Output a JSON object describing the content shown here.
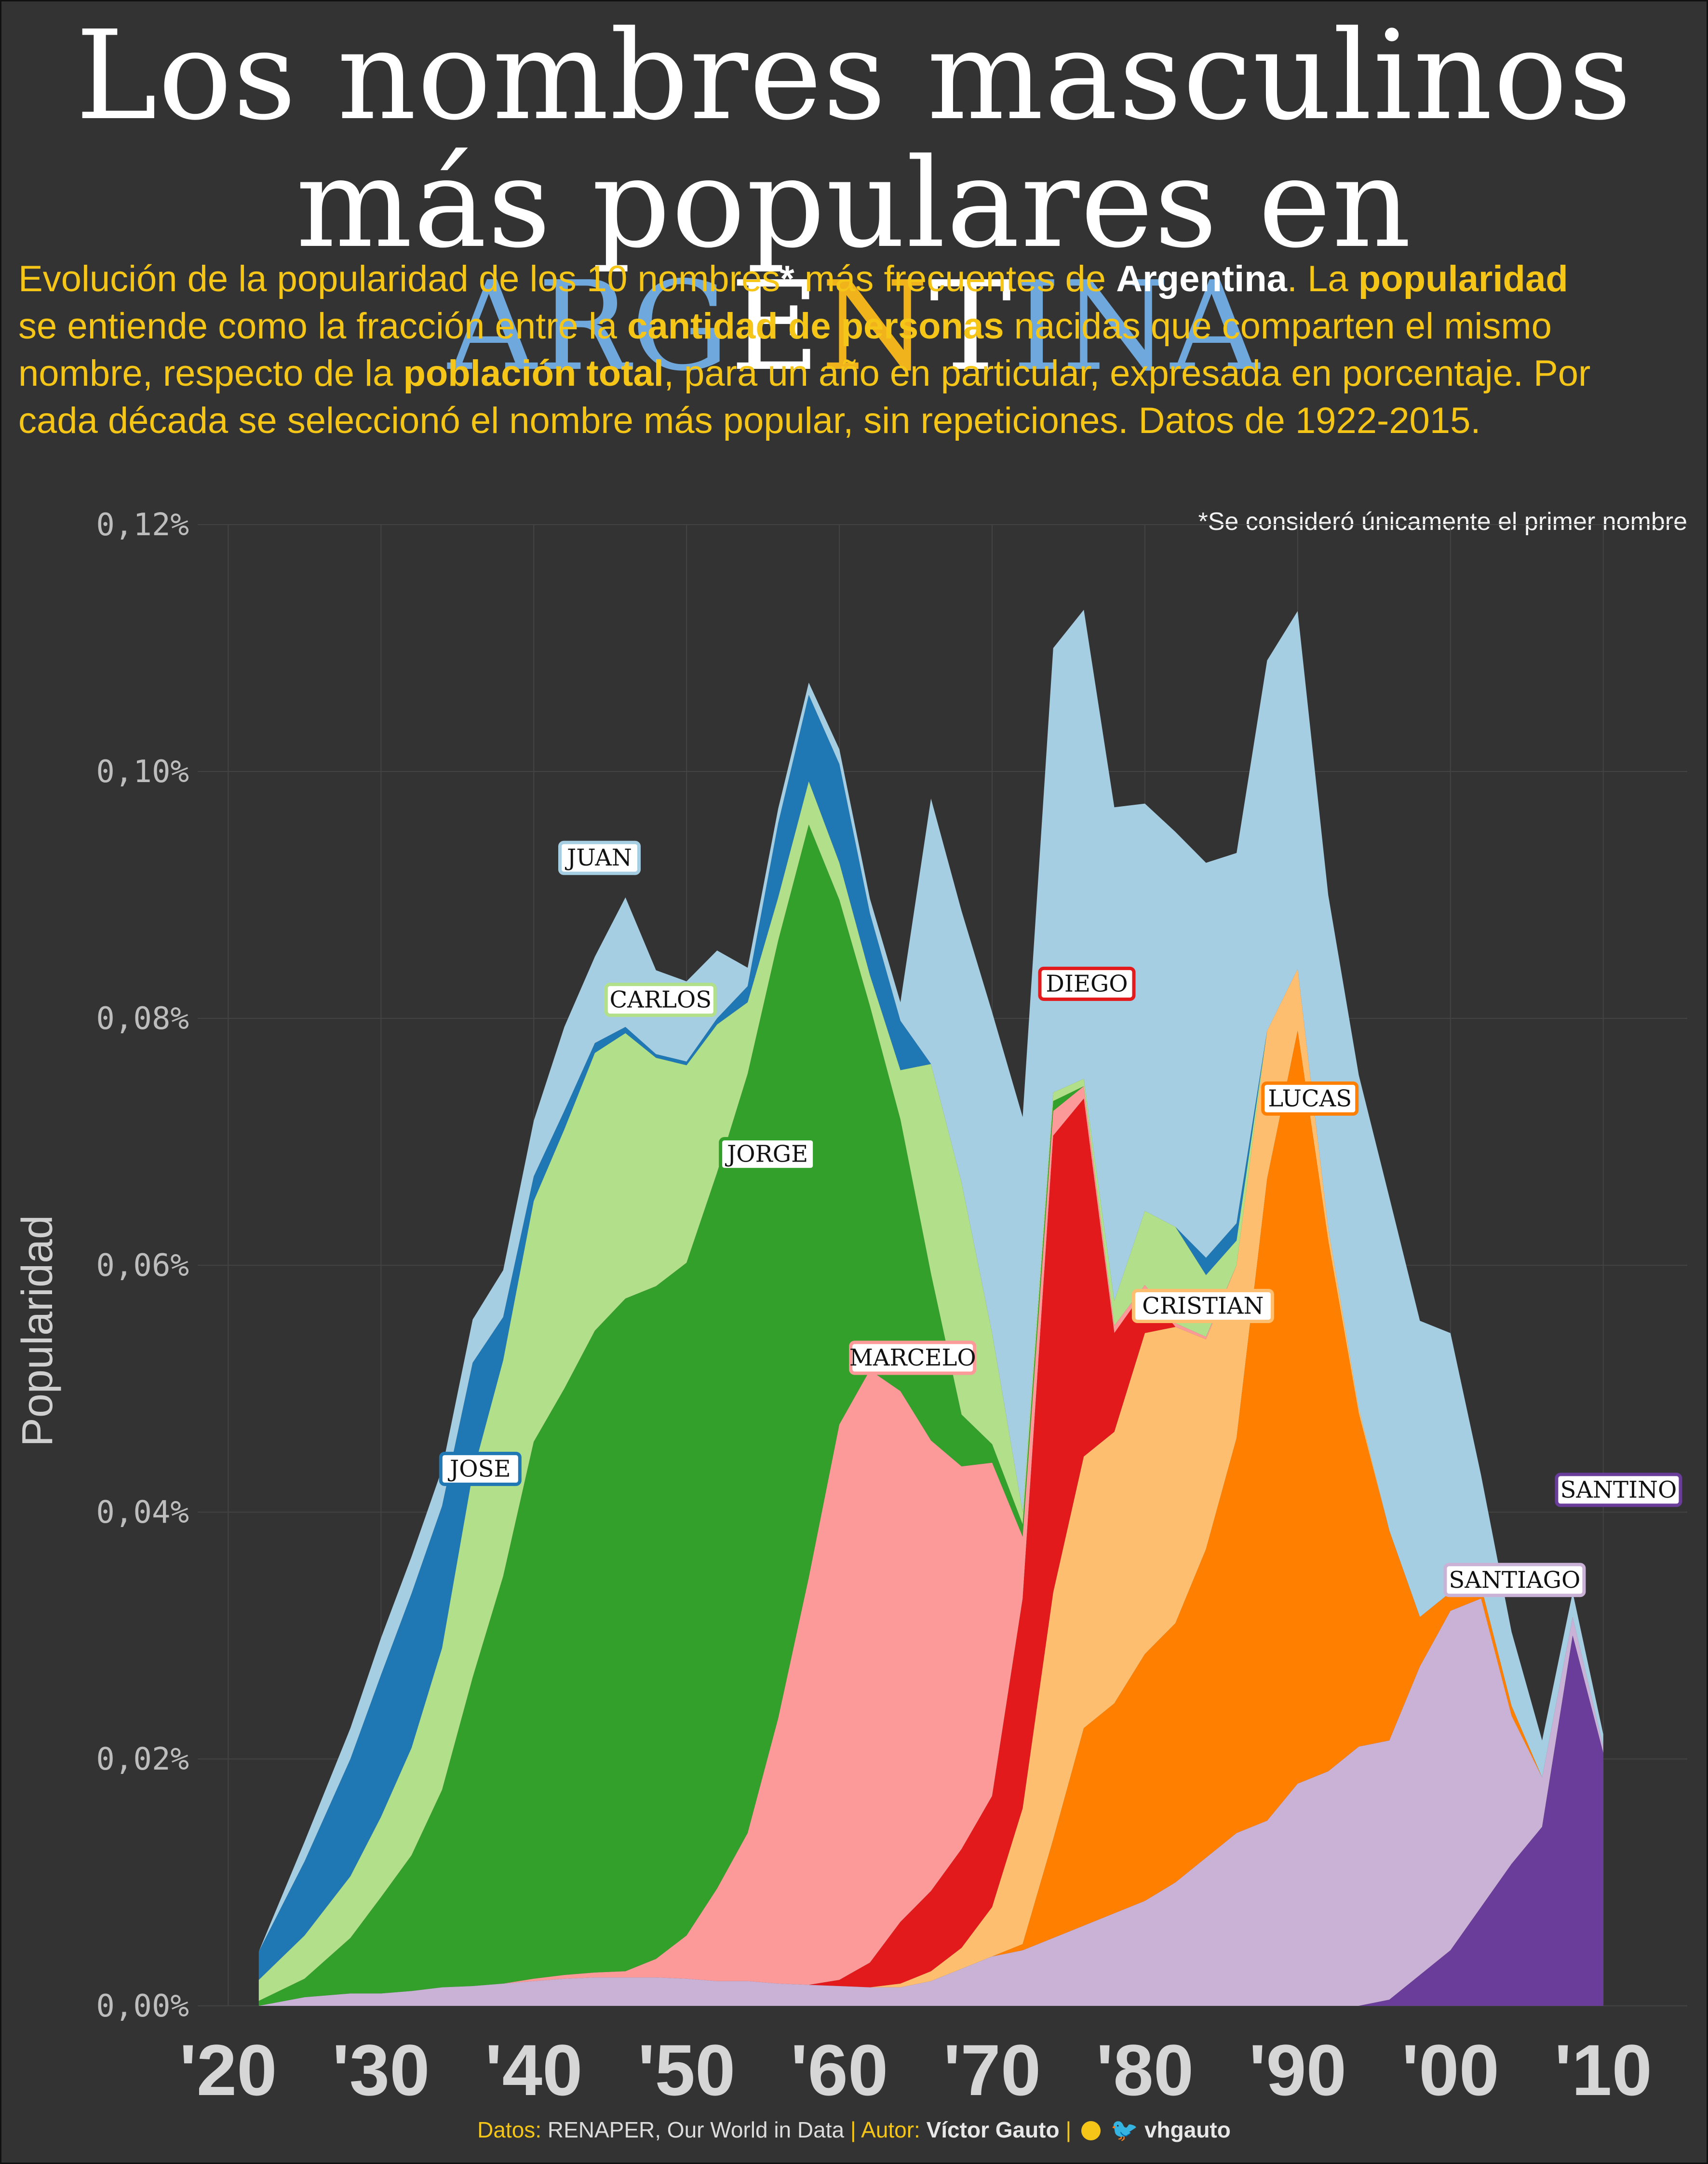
{
  "title": {
    "line1": "Los nombres masculinos",
    "line2_prefix": "más populares en",
    "country_letters": [
      {
        "t": "ARG",
        "color": "#6fa8dc"
      },
      {
        "t": "E",
        "color": "#ffffff"
      },
      {
        "t": "N",
        "color": "#f1b31c"
      },
      {
        "t": "T",
        "color": "#ffffff"
      },
      {
        "t": "INA",
        "color": "#6fa8dc"
      }
    ]
  },
  "subtitle": {
    "p1": "Evolución de la popularidad de los 10 nombres",
    "p2": "*",
    "p3": " más frecuentes de ",
    "p4": "Argentina",
    "p5": ". La ",
    "p6": "popularidad",
    "p7": " se entiende como la fracción entre la ",
    "p8": "cantidad de personas",
    "p9": " nacidas que comparten el mismo nombre, respecto de la ",
    "p10": "población total",
    "p11": ", para un año en particular, expresada en porcentaje. Por cada década se seleccionó el nombre más popular, sin repeticiones. Datos de 1922-2015."
  },
  "footnote": "*Se consideró únicamente el primer nombre",
  "footer": {
    "datos_key": "Datos:",
    "datos_val": "RENAPER,  Our World in Data",
    "autor_key": "|  Autor:",
    "autor_val": "Víctor Gauto",
    "sep": "|",
    "handle": "vhgauto"
  },
  "chart_data": {
    "type": "area",
    "stacked": true,
    "ylabel": "Popularidad",
    "xlabel": "",
    "ylim": [
      0,
      0.12
    ],
    "xlim": [
      1918,
      2015.5
    ],
    "yticks": [
      {
        "v": 0,
        "label": "0,00%"
      },
      {
        "v": 0.02,
        "label": "0,02%"
      },
      {
        "v": 0.04,
        "label": "0,04%"
      },
      {
        "v": 0.06,
        "label": "0,06%"
      },
      {
        "v": 0.08,
        "label": "0,08%"
      },
      {
        "v": 0.1,
        "label": "0,10%"
      },
      {
        "v": 0.12,
        "label": "0,12%"
      }
    ],
    "xticks": [
      {
        "v": 1920,
        "label": "'20"
      },
      {
        "v": 1930,
        "label": "'30"
      },
      {
        "v": 1940,
        "label": "'40"
      },
      {
        "v": 1950,
        "label": "'50"
      },
      {
        "v": 1960,
        "label": "'60"
      },
      {
        "v": 1970,
        "label": "'70"
      },
      {
        "v": 1980,
        "label": "'80"
      },
      {
        "v": 1990,
        "label": "'90"
      },
      {
        "v": 2000,
        "label": "'00"
      },
      {
        "v": 2010,
        "label": "'10"
      }
    ],
    "grid": true,
    "x": [
      1922,
      1925,
      1928,
      1930,
      1932,
      1934,
      1936,
      1938,
      1940,
      1942,
      1944,
      1946,
      1948,
      1950,
      1952,
      1954,
      1956,
      1958,
      1960,
      1962,
      1964,
      1966,
      1968,
      1970,
      1972,
      1974,
      1976,
      1978,
      1980,
      1982,
      1984,
      1986,
      1988,
      1990,
      1992,
      1994,
      1996,
      1998,
      2000,
      2002,
      2004,
      2006,
      2008,
      2010
    ],
    "series": [
      {
        "name": "JUAN",
        "color": "#a6cee3",
        "values": [
          0,
          0.0016,
          0.0025,
          0.003,
          0.003,
          0.003,
          0.0035,
          0.0038,
          0.0045,
          0.0068,
          0.007,
          0.0105,
          0.0068,
          0.0065,
          0.0055,
          0.0015,
          0.0012,
          0.001,
          0.0012,
          0.0012,
          0.0015,
          0.0215,
          0.022,
          0.026,
          0.032,
          0.036,
          0.038,
          0.04,
          0.033,
          0.032,
          0.032,
          0.03,
          0.03,
          0.029,
          0.027,
          0.027,
          0.027,
          0.024,
          0.021,
          0.009,
          0.006,
          0.003,
          0.002,
          0.001
        ]
      },
      {
        "name": "JOSE",
        "color": "#1f78b4",
        "values": [
          0.0023,
          0.006,
          0.0095,
          0.0115,
          0.0125,
          0.0115,
          0.009,
          0.0035,
          0.002,
          0.0015,
          0.0008,
          0.0005,
          0.0003,
          0.0003,
          0.0005,
          0.0013,
          0.006,
          0.007,
          0.008,
          0.005,
          0.004,
          0,
          0,
          0,
          0,
          0,
          0,
          0,
          0,
          0,
          0.0014,
          0.0014,
          0,
          0,
          0,
          0,
          0,
          0,
          0,
          0,
          0,
          0,
          0,
          0
        ]
      },
      {
        "name": "CARLOS",
        "color": "#b2df8a",
        "values": [
          0.0017,
          0.0035,
          0.005,
          0.0065,
          0.0087,
          0.0115,
          0.0165,
          0.0175,
          0.0195,
          0.021,
          0.0225,
          0.0215,
          0.0185,
          0.016,
          0.012,
          0.0058,
          0.0035,
          0.0035,
          0.003,
          0.0025,
          0.004,
          0.017,
          0.0188,
          0.009,
          0.001,
          0.0007,
          0.0006,
          0.002,
          0.006,
          0.0078,
          0.005,
          0.002,
          0,
          0,
          0,
          0,
          0,
          0,
          0,
          0,
          0,
          0,
          0,
          0
        ]
      },
      {
        "name": "JORGE",
        "color": "#33a02c",
        "values": [
          0.0004,
          0.0015,
          0.0045,
          0.0078,
          0.011,
          0.016,
          0.025,
          0.033,
          0.0435,
          0.0475,
          0.052,
          0.0545,
          0.0545,
          0.0545,
          0.058,
          0.0615,
          0.063,
          0.061,
          0.0425,
          0.0295,
          0.022,
          0.0135,
          0.0042,
          0.0015,
          0.001,
          0.0008,
          0,
          0,
          0,
          0,
          0,
          0,
          0,
          0,
          0,
          0,
          0,
          0,
          0,
          0,
          0,
          0,
          0,
          0
        ]
      },
      {
        "name": "MARCELO",
        "color": "#fb9a99",
        "values": [
          0,
          0,
          0,
          0,
          0,
          0,
          0,
          0,
          0.0002,
          0.0003,
          0.0004,
          0.0005,
          0.0015,
          0.0035,
          0.0075,
          0.012,
          0.0215,
          0.033,
          0.045,
          0.048,
          0.043,
          0.0365,
          0.031,
          0.027,
          0.005,
          0.002,
          0.001,
          0.0006,
          0.0004,
          0.0003,
          0.0002,
          0,
          0,
          0,
          0,
          0,
          0,
          0,
          0,
          0,
          0,
          0,
          0,
          0
        ]
      },
      {
        "name": "DIEGO",
        "color": "#e31a1c",
        "values": [
          0,
          0,
          0,
          0,
          0,
          0,
          0,
          0,
          0,
          0,
          0,
          0,
          0,
          0,
          0,
          0,
          0,
          0,
          0.0005,
          0.002,
          0.005,
          0.0065,
          0.008,
          0.009,
          0.017,
          0.037,
          0.029,
          0.008,
          0.0035,
          0,
          0,
          0,
          0,
          0,
          0,
          0,
          0,
          0,
          0,
          0,
          0,
          0,
          0,
          0
        ]
      },
      {
        "name": "CRISTIAN",
        "color": "#fdbf6f",
        "values": [
          0,
          0,
          0,
          0,
          0,
          0,
          0,
          0,
          0,
          0,
          0,
          0,
          0,
          0,
          0,
          0,
          0,
          0,
          0,
          0,
          0.0003,
          0.0008,
          0.0017,
          0.004,
          0.011,
          0.02,
          0.022,
          0.022,
          0.026,
          0.024,
          0.017,
          0.014,
          0.012,
          0.005,
          0.001,
          0.0004,
          0,
          0,
          0,
          0,
          0,
          0,
          0,
          0
        ]
      },
      {
        "name": "LUCAS",
        "color": "#ff7f00",
        "values": [
          0,
          0,
          0,
          0,
          0,
          0,
          0,
          0,
          0,
          0,
          0,
          0,
          0,
          0,
          0,
          0,
          0,
          0,
          0,
          0,
          0,
          0,
          0,
          0,
          0.0005,
          0.008,
          0.016,
          0.017,
          0.02,
          0.021,
          0.025,
          0.032,
          0.052,
          0.061,
          0.043,
          0.027,
          0.017,
          0.004,
          0.0015,
          0.001,
          0.0008,
          0,
          0,
          0
        ]
      },
      {
        "name": "SANTIAGO",
        "color": "#cab2d6",
        "values": [
          0,
          0.0007,
          0.001,
          0.001,
          0.0012,
          0.0015,
          0.0016,
          0.0018,
          0.002,
          0.0022,
          0.0023,
          0.0023,
          0.0023,
          0.0022,
          0.002,
          0.002,
          0.0018,
          0.0017,
          0.0016,
          0.0015,
          0.0015,
          0.002,
          0.003,
          0.004,
          0.0045,
          0.0055,
          0.0065,
          0.0075,
          0.0085,
          0.01,
          0.012,
          0.014,
          0.015,
          0.018,
          0.019,
          0.021,
          0.021,
          0.025,
          0.0275,
          0.025,
          0.012,
          0.004,
          0.0015,
          0.0005
        ]
      },
      {
        "name": "SANTINO",
        "color": "#6a3d9a",
        "values": [
          0,
          0,
          0,
          0,
          0,
          0,
          0,
          0,
          0,
          0,
          0,
          0,
          0,
          0,
          0,
          0,
          0,
          0,
          0,
          0,
          0,
          0,
          0,
          0,
          0,
          0,
          0,
          0,
          0,
          0,
          0,
          0,
          0,
          0,
          0,
          0,
          0.0005,
          0.0025,
          0.0045,
          0.008,
          0.0115,
          0.0145,
          0.03,
          0.0205
        ]
      }
    ]
  },
  "labels": [
    {
      "name": "JUAN",
      "x": 1944.3,
      "y": 0.093,
      "border": "#a6cee3"
    },
    {
      "name": "CARLOS",
      "x": 1948.3,
      "y": 0.0815,
      "border": "#b2df8a"
    },
    {
      "name": "JORGE",
      "x": 1955.3,
      "y": 0.069,
      "border": "#33a02c"
    },
    {
      "name": "JOSE",
      "x": 1936.5,
      "y": 0.0435,
      "border": "#1f78b4"
    },
    {
      "name": "MARCELO",
      "x": 1964.8,
      "y": 0.0525,
      "border": "#fb9a99"
    },
    {
      "name": "DIEGO",
      "x": 1976.2,
      "y": 0.0828,
      "border": "#e31a1c"
    },
    {
      "name": "CRISTIAN",
      "x": 1983.8,
      "y": 0.0567,
      "border": "#fdbf6f"
    },
    {
      "name": "LUCAS",
      "x": 1990.8,
      "y": 0.0735,
      "border": "#ff7f00"
    },
    {
      "name": "SANTIAGO",
      "x": 2004.2,
      "y": 0.0345,
      "border": "#cab2d6"
    },
    {
      "name": "SANTINO",
      "x": 2011.0,
      "y": 0.0418,
      "border": "#6a3d9a"
    }
  ]
}
